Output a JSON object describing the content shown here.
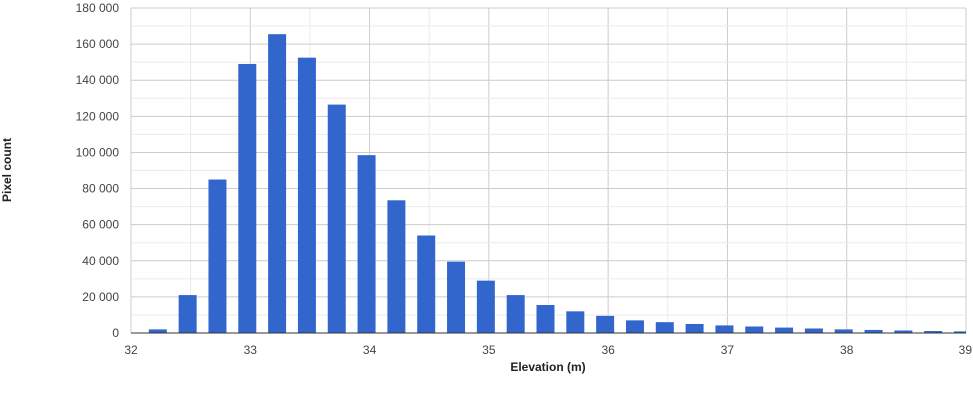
{
  "chart_data": {
    "type": "bar",
    "title": "",
    "xlabel": "Elevation (m)",
    "ylabel": "Pixel count",
    "xlim": [
      32,
      39
    ],
    "ylim": [
      0,
      180000
    ],
    "x_ticks": [
      32,
      33,
      34,
      35,
      36,
      37,
      38,
      39
    ],
    "x_tick_labels": [
      "32",
      "33",
      "34",
      "35",
      "36",
      "37",
      "38",
      "39"
    ],
    "y_ticks": [
      0,
      20000,
      40000,
      60000,
      80000,
      100000,
      120000,
      140000,
      160000,
      180000
    ],
    "y_tick_labels": [
      "0",
      "20 000",
      "40 000",
      "60 000",
      "80 000",
      "100 000",
      "120 000",
      "140 000",
      "160 000",
      "180 000"
    ],
    "grid": true,
    "legend": "none",
    "bar_color": "#3366cc",
    "series": [
      {
        "x": [
          32.25,
          32.5,
          32.75,
          33.0,
          33.25,
          33.5,
          33.75,
          34.0,
          34.25,
          34.5,
          34.75,
          35.0,
          35.25,
          35.5,
          35.75,
          36.0,
          36.25,
          36.5,
          36.75,
          37.0,
          37.25,
          37.5,
          37.75,
          38.0,
          38.25,
          38.5,
          38.75,
          39.0
        ],
        "values": [
          2000,
          21000,
          85000,
          149000,
          165500,
          152500,
          126500,
          98500,
          73500,
          54000,
          39500,
          29000,
          21000,
          15500,
          12000,
          9500,
          7000,
          6000,
          5000,
          4200,
          3600,
          3000,
          2500,
          2000,
          1700,
          1400,
          1100,
          900
        ]
      }
    ]
  }
}
